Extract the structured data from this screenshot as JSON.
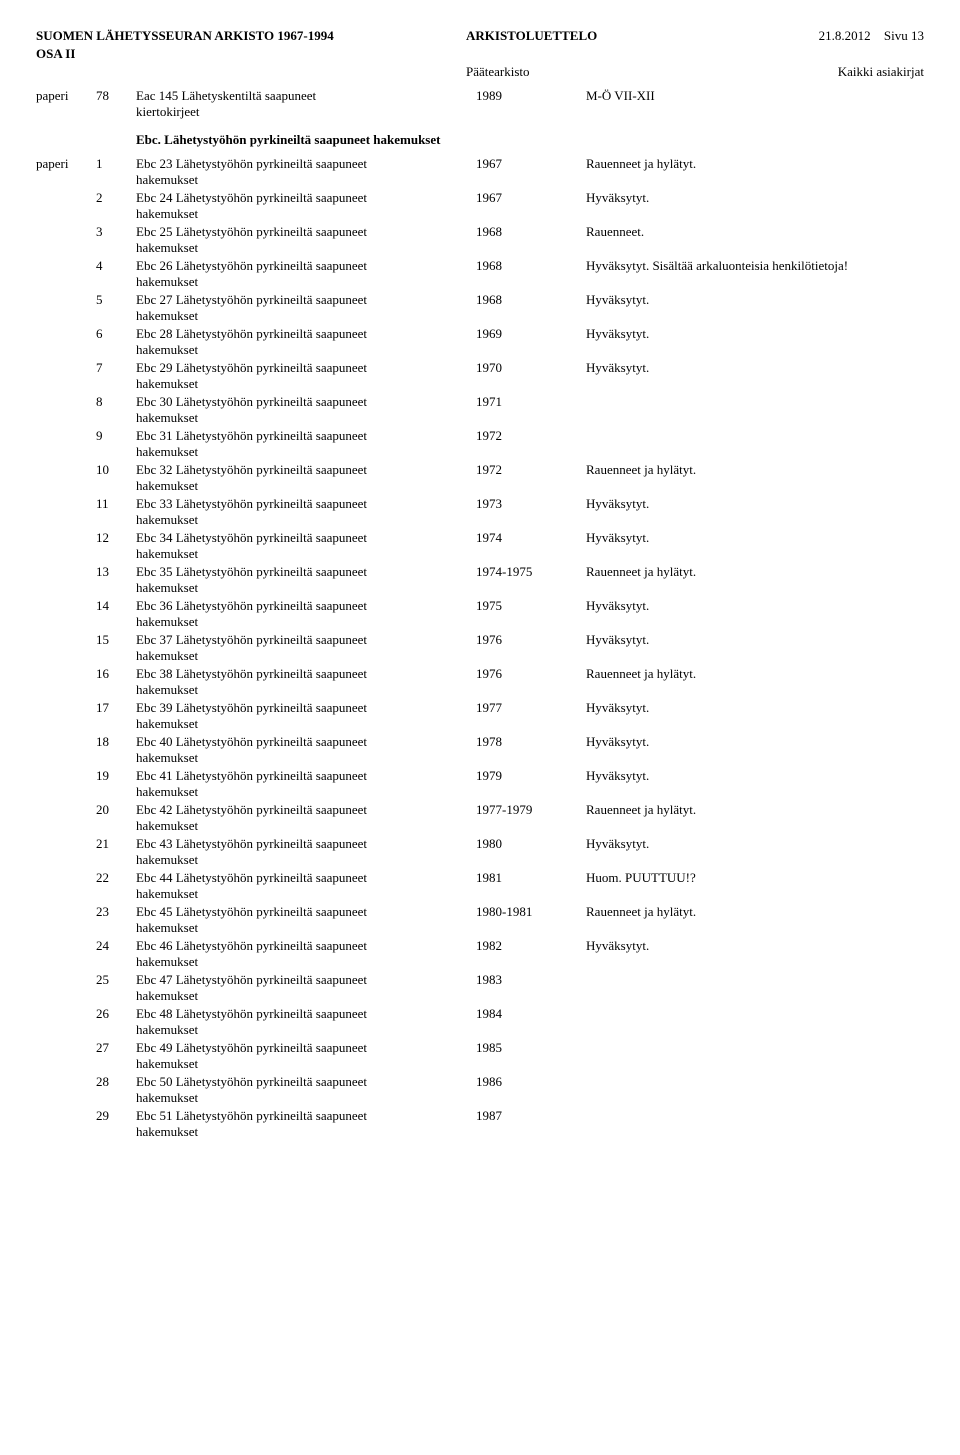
{
  "header": {
    "archive_title": "SUOMEN LÄHETYSSEURAN ARKISTO 1967-1994",
    "catalog_label": "ARKISTOLUETTELO",
    "date": "21.8.2012",
    "page_label": "Sivu",
    "page_number": "13",
    "osa": "OSA II",
    "archive_sub": "Päätearkisto",
    "scope": "Kaikki asiakirjat"
  },
  "top_entry": {
    "material": "paperi",
    "num": "78",
    "code": "Eac 145",
    "desc1": "Lähetyskentiltä saapuneet",
    "desc2": "kiertokirjeet",
    "year": "1989",
    "note": "M-Ö VII-XII"
  },
  "section": {
    "title": "Ebc. Lähetystyöhön pyrkineiltä saapuneet hakemukset",
    "material": "paperi",
    "desc_line1_prefix": "Ebc ",
    "desc_line1_suffix": " Lähetystyöhön pyrkineiltä saapuneet",
    "desc_line2": "hakemukset",
    "rows": [
      {
        "n": "1",
        "code": "23",
        "year": "1967",
        "note": "Rauenneet ja hylätyt."
      },
      {
        "n": "2",
        "code": "24",
        "year": "1967",
        "note": "Hyväksytyt."
      },
      {
        "n": "3",
        "code": "25",
        "year": "1968",
        "note": "Rauenneet."
      },
      {
        "n": "4",
        "code": "26",
        "year": "1968",
        "note": "Hyväksytyt. Sisältää arkaluonteisia henkilötietoja!"
      },
      {
        "n": "5",
        "code": "27",
        "year": "1968",
        "note": "Hyväksytyt."
      },
      {
        "n": "6",
        "code": "28",
        "year": "1969",
        "note": "Hyväksytyt."
      },
      {
        "n": "7",
        "code": "29",
        "year": "1970",
        "note": "Hyväksytyt."
      },
      {
        "n": "8",
        "code": "30",
        "year": "1971",
        "note": ""
      },
      {
        "n": "9",
        "code": "31",
        "year": "1972",
        "note": ""
      },
      {
        "n": "10",
        "code": "32",
        "year": "1972",
        "note": "Rauenneet ja hylätyt."
      },
      {
        "n": "11",
        "code": "33",
        "year": "1973",
        "note": "Hyväksytyt."
      },
      {
        "n": "12",
        "code": "34",
        "year": "1974",
        "note": "Hyväksytyt."
      },
      {
        "n": "13",
        "code": "35",
        "year": "1974-1975",
        "note": "Rauenneet ja hylätyt."
      },
      {
        "n": "14",
        "code": "36",
        "year": "1975",
        "note": "Hyväksytyt."
      },
      {
        "n": "15",
        "code": "37",
        "year": "1976",
        "note": "Hyväksytyt."
      },
      {
        "n": "16",
        "code": "38",
        "year": "1976",
        "note": "Rauenneet ja hylätyt."
      },
      {
        "n": "17",
        "code": "39",
        "year": "1977",
        "note": "Hyväksytyt."
      },
      {
        "n": "18",
        "code": "40",
        "year": "1978",
        "note": "Hyväksytyt."
      },
      {
        "n": "19",
        "code": "41",
        "year": "1979",
        "note": "Hyväksytyt."
      },
      {
        "n": "20",
        "code": "42",
        "year": "1977-1979",
        "note": "Rauenneet ja hylätyt."
      },
      {
        "n": "21",
        "code": "43",
        "year": "1980",
        "note": "Hyväksytyt."
      },
      {
        "n": "22",
        "code": "44",
        "year": "1981",
        "note": "Huom. PUUTTUU!?"
      },
      {
        "n": "23",
        "code": "45",
        "year": "1980-1981",
        "note": "Rauenneet ja hylätyt."
      },
      {
        "n": "24",
        "code": "46",
        "year": "1982",
        "note": "Hyväksytyt."
      },
      {
        "n": "25",
        "code": "47",
        "year": "1983",
        "note": ""
      },
      {
        "n": "26",
        "code": "48",
        "year": "1984",
        "note": ""
      },
      {
        "n": "27",
        "code": "49",
        "year": "1985",
        "note": ""
      },
      {
        "n": "28",
        "code": "50",
        "year": "1986",
        "note": ""
      },
      {
        "n": "29",
        "code": "51",
        "year": "1987",
        "note": ""
      }
    ]
  }
}
